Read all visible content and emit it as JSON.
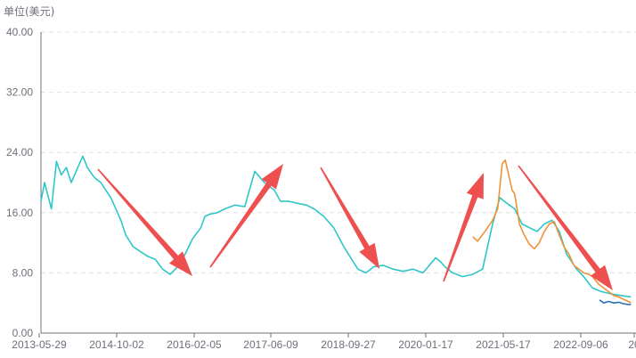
{
  "chart_data": {
    "type": "line",
    "ylabel": "单位(美元)",
    "ylim": [
      0,
      40
    ],
    "yticks": [
      "0.00",
      "8.00",
      "16.00",
      "24.00",
      "32.00",
      "40.00"
    ],
    "xticks": [
      "2013-05-29",
      "2014-10-02",
      "2016-02-05",
      "2017-06-09",
      "2018-09-27",
      "2020-01-17",
      "2021-05-17",
      "2022-09-06",
      "20"
    ],
    "grid": true,
    "colors": {
      "series_teal": "#2ec7c9",
      "series_orange": "#f0923a",
      "series_blue": "#2a73b8",
      "arrow": "#ee4f4f",
      "axis": "#6e7079",
      "grid": "#e0e0e0"
    },
    "series": [
      {
        "color": "#2ec7c9",
        "x": [
          "2013-05-29",
          "2013-06-20",
          "2013-08-01",
          "2013-09-01",
          "2013-10-01",
          "2013-11-01",
          "2013-12-01",
          "2014-01-10",
          "2014-02-10",
          "2014-03-10",
          "2014-04-10",
          "2014-05-01",
          "2014-06-01",
          "2014-07-01",
          "2014-08-01",
          "2014-09-01",
          "2014-10-02",
          "2014-11-01",
          "2014-12-15",
          "2015-02-01",
          "2015-03-15",
          "2015-05-01",
          "2015-06-15",
          "2015-08-01",
          "2015-09-15",
          "2015-11-01",
          "2015-12-15",
          "2016-02-05",
          "2016-03-01",
          "2016-04-01",
          "2016-05-15",
          "2016-07-01",
          "2016-09-01",
          "2016-11-01",
          "2017-01-01",
          "2017-03-01",
          "2017-05-01",
          "2017-06-09",
          "2017-08-01",
          "2017-10-01",
          "2017-11-15",
          "2018-01-01",
          "2018-03-01",
          "2018-05-01",
          "2018-07-01",
          "2018-09-27",
          "2018-11-15",
          "2019-01-01",
          "2019-03-01",
          "2019-05-01",
          "2019-07-01",
          "2019-09-01",
          "2019-11-01",
          "2020-01-17",
          "2020-02-15",
          "2020-03-15",
          "2020-05-01",
          "2020-07-01",
          "2020-09-01",
          "2020-11-01",
          "2021-01-01",
          "2021-02-15",
          "2021-03-15",
          "2021-04-15",
          "2021-05-17",
          "2021-07-01",
          "2021-08-15",
          "2021-10-01",
          "2021-11-15",
          "2022-01-01",
          "2022-02-15",
          "2022-04-01",
          "2022-06-01",
          "2022-07-15",
          "2022-09-06",
          "2022-11-01",
          "2023-01-01",
          "2023-03-01",
          "2023-05-01"
        ],
        "values": [
          17.5,
          20.0,
          16.5,
          22.8,
          21.0,
          22.0,
          20.0,
          22.0,
          23.5,
          22.0,
          21.0,
          20.5,
          20.0,
          19.0,
          18.0,
          16.5,
          15.0,
          13.0,
          11.5,
          10.8,
          10.2,
          9.8,
          8.5,
          7.8,
          8.8,
          10.5,
          12.5,
          14.0,
          15.5,
          15.8,
          16.0,
          16.5,
          17.0,
          16.8,
          21.5,
          20.0,
          19.0,
          17.5,
          17.5,
          17.2,
          17.0,
          16.5,
          15.5,
          14.0,
          11.5,
          8.5,
          8.0,
          8.8,
          9.0,
          8.5,
          8.2,
          8.5,
          8.0,
          10.0,
          9.5,
          8.8,
          8.0,
          7.5,
          7.8,
          8.5,
          14.5,
          18.0,
          17.5,
          17.0,
          16.5,
          14.5,
          14.0,
          13.5,
          14.5,
          15.0,
          13.5,
          10.5,
          8.5,
          7.5,
          6.0,
          5.5,
          5.2,
          5.0,
          4.8
        ]
      },
      {
        "color": "#f0923a",
        "x": [
          "2020-09-01",
          "2020-10-01",
          "2020-11-15",
          "2021-01-01",
          "2021-02-01",
          "2021-03-01",
          "2021-03-20",
          "2021-04-10",
          "2021-05-01",
          "2021-05-17",
          "2021-06-15",
          "2021-07-15",
          "2021-08-15",
          "2021-09-15",
          "2021-10-15",
          "2021-11-15",
          "2021-12-15",
          "2022-01-15",
          "2022-02-15",
          "2022-03-15",
          "2022-04-15",
          "2022-05-15",
          "2022-06-15",
          "2022-07-15",
          "2022-08-15",
          "2022-09-06",
          "2022-10-15",
          "2022-11-15",
          "2022-12-15",
          "2023-01-15",
          "2023-02-15",
          "2023-03-15",
          "2023-04-15",
          "2023-05-01"
        ],
        "values": [
          12.8,
          12.2,
          13.5,
          15.0,
          16.5,
          22.5,
          23.0,
          21.0,
          19.0,
          18.5,
          14.5,
          13.0,
          11.8,
          11.2,
          12.0,
          13.5,
          14.5,
          14.8,
          13.0,
          11.5,
          10.5,
          9.0,
          8.5,
          8.0,
          7.8,
          7.5,
          6.5,
          6.0,
          5.5,
          5.0,
          4.8,
          4.5,
          4.2,
          4.0
        ]
      },
      {
        "color": "#2a73b8",
        "x": [
          "2022-10-20",
          "2022-11-15",
          "2022-12-15",
          "2023-01-15",
          "2023-02-15",
          "2023-03-15",
          "2023-04-15",
          "2023-05-01"
        ],
        "values": [
          4.4,
          4.0,
          4.2,
          4.0,
          4.1,
          3.9,
          3.8,
          3.8
        ]
      }
    ]
  }
}
